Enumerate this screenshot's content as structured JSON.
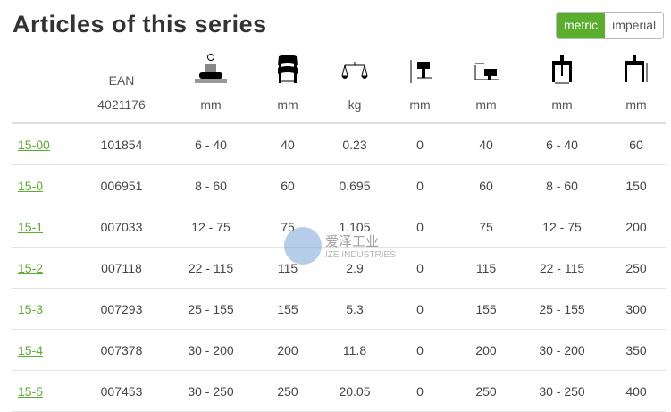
{
  "title": "Articles of this series",
  "units_toggle": {
    "options": [
      "metric",
      "imperial"
    ],
    "selected": "metric",
    "accent": "#5aae2e"
  },
  "columns": [
    {
      "icon": "",
      "label": "EAN",
      "unit": "4021176"
    },
    {
      "icon": "jaw-diameter-icon",
      "unit": "mm"
    },
    {
      "icon": "puller-width-icon",
      "unit": "mm"
    },
    {
      "icon": "scale-weight-icon",
      "unit": "kg"
    },
    {
      "icon": "clearance-height-icon",
      "unit": "mm"
    },
    {
      "icon": "clearance-side-icon",
      "unit": "mm"
    },
    {
      "icon": "spread-width-icon",
      "unit": "mm"
    },
    {
      "icon": "reach-depth-icon",
      "unit": "mm"
    }
  ],
  "rows": [
    [
      "15-00",
      "101854",
      "6 - 40",
      "40",
      "0.23",
      "0",
      "40",
      "6 - 40",
      "60"
    ],
    [
      "15-0",
      "006951",
      "8 - 60",
      "60",
      "0.695",
      "0",
      "60",
      "8 - 60",
      "150"
    ],
    [
      "15-1",
      "007033",
      "12 - 75",
      "75",
      "1.105",
      "0",
      "75",
      "12 - 75",
      "200"
    ],
    [
      "15-2",
      "007118",
      "22 - 115",
      "115",
      "2.9",
      "0",
      "115",
      "22 - 115",
      "250"
    ],
    [
      "15-3",
      "007293",
      "25 - 155",
      "155",
      "5.3",
      "0",
      "155",
      "25 - 155",
      "300"
    ],
    [
      "15-4",
      "007378",
      "30 - 200",
      "200",
      "11.8",
      "0",
      "200",
      "30 - 200",
      "350"
    ],
    [
      "15-5",
      "007453",
      "30 - 250",
      "250",
      "20.05",
      "0",
      "250",
      "30 - 250",
      "400"
    ]
  ],
  "watermark": {
    "line1": "爱泽工业",
    "line2": "IZE INDUSTRIES"
  }
}
